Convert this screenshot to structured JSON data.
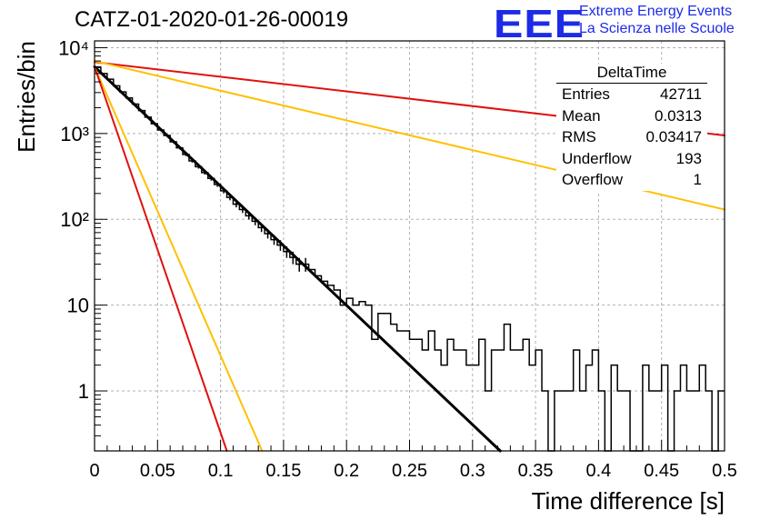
{
  "header": {
    "title": "CATZ-01-2020-01-26-00019",
    "logo_text": "EEE",
    "tagline_1": "Extreme Energy Events",
    "tagline_2": "La Scienza nelle Scuole"
  },
  "stats_box": {
    "title": "DeltaTime",
    "rows": [
      {
        "label": "Entries",
        "value": "42711"
      },
      {
        "label": "Mean",
        "value": "0.0313"
      },
      {
        "label": "RMS",
        "value": "0.03417"
      },
      {
        "label": "Underflow",
        "value": "193"
      },
      {
        "label": "Overflow",
        "value": "1"
      }
    ]
  },
  "colors": {
    "histogram": "#000000",
    "fit_black": "#000000",
    "red": "#e01010",
    "yellow": "#ffc000",
    "logo_blue": "#1d2be6",
    "grid": "#b0b0b0"
  },
  "chart_data": {
    "type": "histogram",
    "xlabel": "Time difference [s]",
    "ylabel": "Entries/bin",
    "xlim": [
      0,
      0.5
    ],
    "ylim": [
      0.2,
      12000
    ],
    "y_scale": "log",
    "grid": true,
    "x_ticks": [
      "0",
      "0.05",
      "0.1",
      "0.15",
      "0.2",
      "0.25",
      "0.3",
      "0.35",
      "0.4",
      "0.45",
      "0.5"
    ],
    "y_ticks": [
      "1",
      "10",
      "10²",
      "10³",
      "10⁴"
    ],
    "bin_width": 0.005,
    "bin_counts": [
      5900,
      5000,
      4300,
      3600,
      3050,
      2600,
      2200,
      1850,
      1550,
      1300,
      1100,
      950,
      800,
      680,
      570,
      480,
      410,
      350,
      300,
      255,
      215,
      180,
      150,
      130,
      110,
      95,
      80,
      68,
      58,
      50,
      42,
      36,
      30,
      30,
      26,
      22,
      19,
      17,
      15,
      10,
      12,
      10,
      11,
      10,
      4,
      8,
      8,
      6,
      5,
      5,
      4,
      4,
      3,
      5,
      3,
      2,
      4,
      3,
      3,
      2,
      2,
      4,
      1,
      3,
      3,
      6,
      3,
      3,
      4,
      2,
      3,
      1,
      0,
      1,
      1,
      1,
      3,
      1,
      2,
      3,
      1,
      0,
      2,
      1,
      1,
      0,
      0,
      2,
      1,
      1,
      2,
      0,
      1,
      2,
      1,
      1,
      2,
      1,
      0,
      1
    ],
    "fit_lines": [
      {
        "color": "black",
        "points": [
          [
            0,
            6000
          ],
          [
            0.322,
            0.2
          ]
        ]
      },
      {
        "color": "red",
        "points": [
          [
            0,
            6800
          ],
          [
            0.5,
            950
          ]
        ]
      },
      {
        "color": "yellow",
        "points": [
          [
            0,
            7000
          ],
          [
            0.5,
            130
          ]
        ]
      },
      {
        "color": "yellow",
        "points": [
          [
            0,
            6000
          ],
          [
            0.133,
            0.2
          ]
        ]
      },
      {
        "color": "red",
        "points": [
          [
            0,
            6000
          ],
          [
            0.105,
            0.2
          ]
        ]
      }
    ]
  }
}
